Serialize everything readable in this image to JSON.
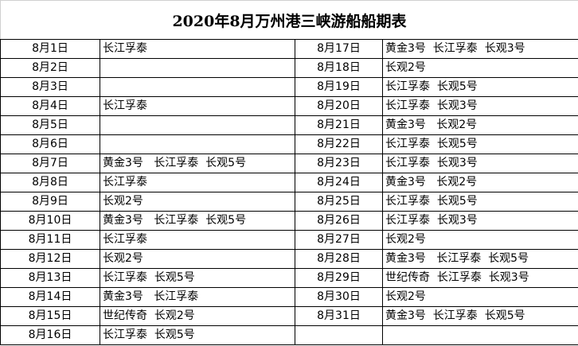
{
  "title": "2020年8月万州港三峡游船船期表",
  "left": [
    {
      "date": "8月1日",
      "ships": "长江孚泰"
    },
    {
      "date": "8月2日",
      "ships": ""
    },
    {
      "date": "8月3日",
      "ships": ""
    },
    {
      "date": "8月4日",
      "ships": "长江孚泰"
    },
    {
      "date": "8月5日",
      "ships": ""
    },
    {
      "date": "8月6日",
      "ships": ""
    },
    {
      "date": "8月7日",
      "ships": "黄金3号   长江孚泰  长观5号"
    },
    {
      "date": "8月8日",
      "ships": "长江孚泰"
    },
    {
      "date": "8月9日",
      "ships": "长观2号"
    },
    {
      "date": "8月10日",
      "ships": "黄金3号   长江孚泰  长观5号"
    },
    {
      "date": "8月11日",
      "ships": "长江孚泰"
    },
    {
      "date": "8月12日",
      "ships": "长观2号"
    },
    {
      "date": "8月13日",
      "ships": "长江孚泰  长观5号"
    },
    {
      "date": "8月14日",
      "ships": "黄金3号   长江孚泰"
    },
    {
      "date": "8月15日",
      "ships": "世纪传奇  长观2号"
    },
    {
      "date": "8月16日",
      "ships": "长江孚泰  长观5号"
    }
  ],
  "right": [
    {
      "date": "8月17日",
      "ships": "黄金3号  长江孚泰  长观3号"
    },
    {
      "date": "8月18日",
      "ships": "长观2号"
    },
    {
      "date": "8月19日",
      "ships": "长江孚泰  长观5号"
    },
    {
      "date": "8月20日",
      "ships": "长江孚泰  长观3号"
    },
    {
      "date": "8月21日",
      "ships": "黄金3号   长观2号"
    },
    {
      "date": "8月22日",
      "ships": "长江孚泰  长观5号"
    },
    {
      "date": "8月23日",
      "ships": "长江孚泰  长观3号"
    },
    {
      "date": "8月24日",
      "ships": "黄金3号   长观2号"
    },
    {
      "date": "8月25日",
      "ships": "长江孚泰  长观5号"
    },
    {
      "date": "8月26日",
      "ships": "长江孚泰  长观3号"
    },
    {
      "date": "8月27日",
      "ships": "长观2号"
    },
    {
      "date": "8月28日",
      "ships": "黄金3号   长江孚泰  长观5号"
    },
    {
      "date": "8月29日",
      "ships": "世纪传奇  长江孚泰  长观3号"
    },
    {
      "date": "8月30日",
      "ships": "长观2号"
    },
    {
      "date": "8月31日",
      "ships": "黄金3号  长江孚泰  长观5号"
    },
    {
      "date": "",
      "ships": ""
    }
  ]
}
